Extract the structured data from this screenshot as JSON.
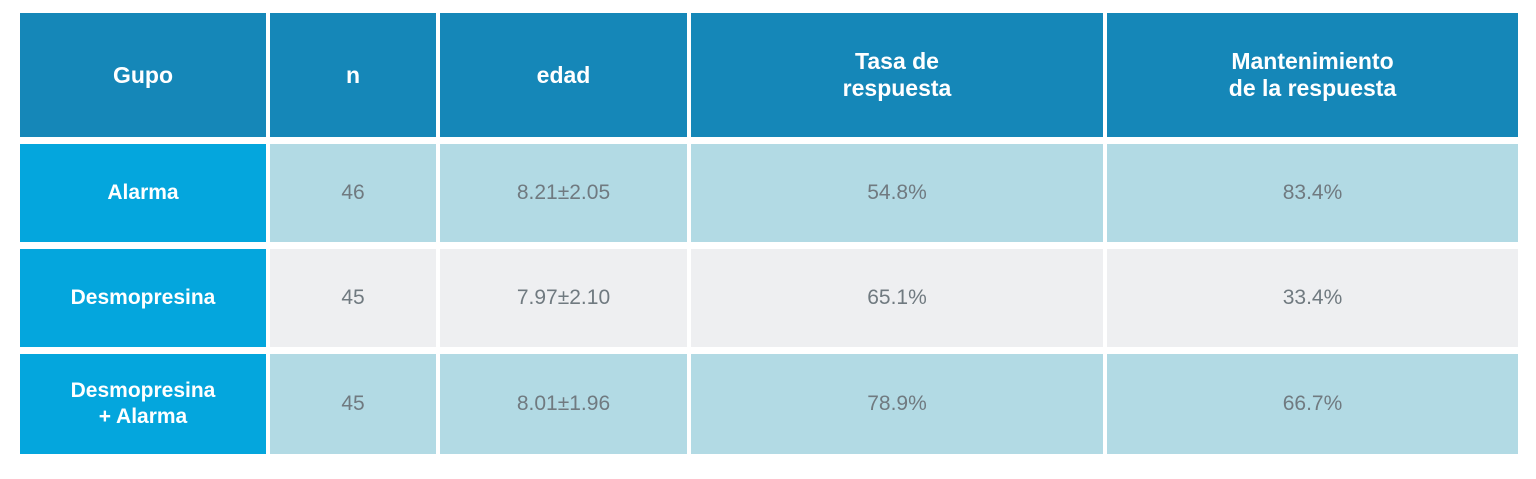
{
  "table": {
    "headers": [
      "Gupo",
      "n",
      "edad",
      "Tasa de\nrespuesta",
      "Mantenimiento\nde la respuesta"
    ],
    "rows": [
      {
        "group": "Alarma",
        "n": "46",
        "edad": "8.21±2.05",
        "tasa": "54.8%",
        "mantenimiento": "83.4%"
      },
      {
        "group": "Desmopresina",
        "n": "45",
        "edad": "7.97±2.10",
        "tasa": "65.1%",
        "mantenimiento": "33.4%"
      },
      {
        "group": "Desmopresina\n+ Alarma",
        "n": "45",
        "edad": "8.01±1.96",
        "tasa": "78.9%",
        "mantenimiento": "66.7%"
      }
    ]
  },
  "colors": {
    "header_bg": "#1587b8",
    "group_bg": "#04a6dd",
    "row_blue_bg": "#b2dae4",
    "row_grey_bg": "#eeeff1",
    "value_text": "#707a80"
  }
}
